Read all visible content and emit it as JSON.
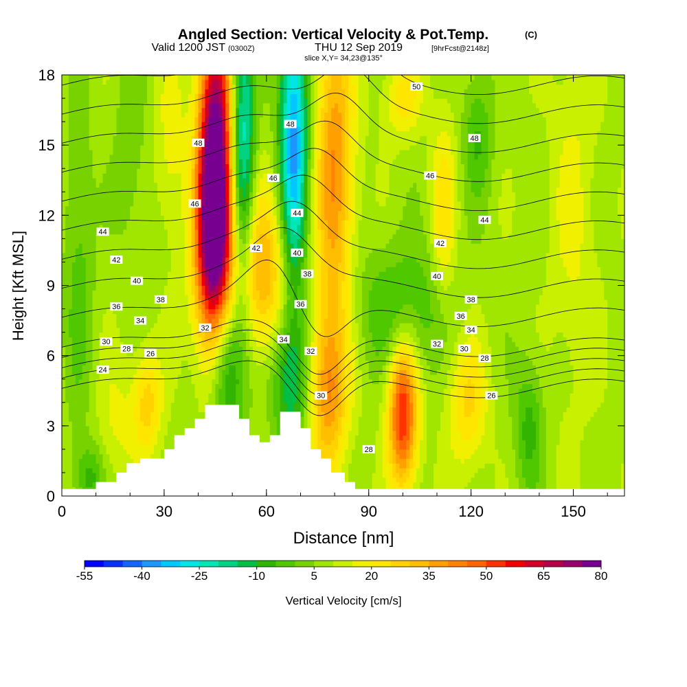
{
  "header": {
    "title": "Angled Section: Vertical Velocity & Pot.Temp.",
    "title_suffix": "(C)",
    "valid_prefix": "Valid 1200 JST",
    "valid_utc": "(0300Z)",
    "valid_date": "THU 12 Sep 2019",
    "forecast": "[9hrFcst@2148z]",
    "slice": "slice X,Y= 34,23@135°"
  },
  "chart_data": {
    "type": "heatmap",
    "xlabel": "Distance [nm]",
    "ylabel": "Height [Kft MSL]",
    "xlim": [
      0,
      165
    ],
    "ylim": [
      0,
      18
    ],
    "x_ticks": [
      0,
      30,
      60,
      90,
      120,
      150
    ],
    "y_ticks": [
      0,
      3,
      6,
      9,
      12,
      15,
      18
    ],
    "colorbar": {
      "label": "Vertical Velocity [cm/s]",
      "ticks": [
        -55,
        -40,
        -25,
        -10,
        5,
        20,
        35,
        50,
        65,
        80
      ],
      "levels": [
        -55,
        -50,
        -45,
        -40,
        -35,
        -30,
        -25,
        -20,
        -15,
        -10,
        -5,
        0,
        5,
        10,
        15,
        20,
        25,
        30,
        35,
        40,
        45,
        50,
        55,
        60,
        65,
        70,
        75,
        80
      ],
      "colors": [
        "#0000ff",
        "#0a32ff",
        "#1464ff",
        "#1e96ff",
        "#00c8ff",
        "#00e6e6",
        "#00e6b4",
        "#00d282",
        "#00be46",
        "#32b400",
        "#50c800",
        "#78d200",
        "#a0e600",
        "#c8f000",
        "#f0f000",
        "#ffe600",
        "#ffd200",
        "#ffbe00",
        "#ffa000",
        "#ff8200",
        "#ff6400",
        "#ff3200",
        "#f00000",
        "#d20028",
        "#b4004b",
        "#96006e",
        "#780091"
      ]
    },
    "terrain_profile": [
      [
        0,
        0.3
      ],
      [
        10,
        0.3
      ],
      [
        10,
        0.6
      ],
      [
        16,
        0.6
      ],
      [
        16,
        1.0
      ],
      [
        19,
        1.0
      ],
      [
        19,
        1.4
      ],
      [
        23,
        1.4
      ],
      [
        23,
        1.6
      ],
      [
        30,
        1.6
      ],
      [
        30,
        2.0
      ],
      [
        33,
        2.0
      ],
      [
        33,
        2.6
      ],
      [
        36,
        2.6
      ],
      [
        36,
        2.9
      ],
      [
        39,
        2.9
      ],
      [
        39,
        3.3
      ],
      [
        42,
        3.3
      ],
      [
        42,
        3.9
      ],
      [
        52,
        3.9
      ],
      [
        52,
        3.3
      ],
      [
        55,
        3.3
      ],
      [
        55,
        2.6
      ],
      [
        58,
        2.6
      ],
      [
        58,
        2.3
      ],
      [
        61,
        2.3
      ],
      [
        61,
        2.6
      ],
      [
        64,
        2.6
      ],
      [
        64,
        3.6
      ],
      [
        70,
        3.6
      ],
      [
        70,
        2.9
      ],
      [
        73,
        2.9
      ],
      [
        73,
        2.0
      ],
      [
        76,
        2.0
      ],
      [
        76,
        1.6
      ],
      [
        79,
        1.6
      ],
      [
        79,
        1.0
      ],
      [
        83,
        1.0
      ],
      [
        83,
        0.6
      ],
      [
        86,
        0.6
      ],
      [
        86,
        0.3
      ],
      [
        165,
        0.3
      ]
    ],
    "w_features": [
      {
        "x": 45,
        "y": 14,
        "sx": 3.5,
        "sy": 4.5,
        "amp": 80,
        "tilt": 0.0
      },
      {
        "x": 44,
        "y": 10,
        "sx": 4,
        "sy": 3,
        "amp": 30,
        "tilt": 0.0
      },
      {
        "x": 53,
        "y": 14.5,
        "sx": 2.5,
        "sy": 5,
        "amp": -35,
        "tilt": 0.0
      },
      {
        "x": 68,
        "y": 15,
        "sx": 3,
        "sy": 5,
        "amp": -45,
        "tilt": 0.0
      },
      {
        "x": 80,
        "y": 14,
        "sx": 4,
        "sy": 5,
        "amp": 32,
        "tilt": 0.0
      },
      {
        "x": 58,
        "y": 9.5,
        "sx": 7,
        "sy": 2.5,
        "amp": 28,
        "tilt": 0.0
      },
      {
        "x": 48,
        "y": 6,
        "sx": 3.5,
        "sy": 2.5,
        "amp": -30,
        "tilt": 0.0
      },
      {
        "x": 67,
        "y": 5,
        "sx": 4,
        "sy": 2,
        "amp": -22,
        "tilt": 0.0
      },
      {
        "x": 78,
        "y": 4.5,
        "sx": 4,
        "sy": 2.5,
        "amp": 30,
        "tilt": 0.0
      },
      {
        "x": 100,
        "y": 3.5,
        "sx": 3,
        "sy": 2.2,
        "amp": 48,
        "tilt": 0.0
      },
      {
        "x": 119,
        "y": 4,
        "sx": 4,
        "sy": 2,
        "amp": 18,
        "tilt": 0.0
      },
      {
        "x": 100,
        "y": 8,
        "sx": 10,
        "sy": 2,
        "amp": -14,
        "tilt": 0.0
      },
      {
        "x": 25,
        "y": 4,
        "sx": 3,
        "sy": 1.6,
        "amp": 20,
        "tilt": 0.0
      },
      {
        "x": 16,
        "y": 3,
        "sx": 4,
        "sy": 2,
        "amp": 8,
        "tilt": 0.0
      },
      {
        "x": 8,
        "y": 0.8,
        "sx": 3,
        "sy": 1,
        "amp": -15,
        "tilt": 0.0
      },
      {
        "x": 137,
        "y": 3,
        "sx": 3,
        "sy": 2,
        "amp": -15,
        "tilt": 0.0
      },
      {
        "x": 5,
        "y": 10,
        "sx": 3,
        "sy": 5,
        "amp": -10,
        "tilt": 0.0
      },
      {
        "x": 112,
        "y": 12,
        "sx": 2.5,
        "sy": 3,
        "amp": 15,
        "tilt": 0.0
      },
      {
        "x": 122,
        "y": 15.5,
        "sx": 3,
        "sy": 2,
        "amp": -13,
        "tilt": 0.0
      },
      {
        "x": 150,
        "y": 12,
        "sx": 5,
        "sy": 6,
        "amp": 8,
        "tilt": 0.0
      },
      {
        "x": 100,
        "y": 17,
        "sx": 4,
        "sy": 1.2,
        "amp": 15,
        "tilt": 0.0
      },
      {
        "x": 32,
        "y": 15,
        "sx": 3,
        "sy": 3,
        "amp": 10,
        "tilt": 0.0
      },
      {
        "x": 20,
        "y": 15,
        "sx": 3,
        "sy": 3,
        "amp": -8,
        "tilt": 0.0
      }
    ],
    "theta_levels": [
      24,
      26,
      28,
      30,
      32,
      34,
      36,
      38,
      40,
      42,
      44,
      46,
      48,
      50
    ],
    "contour_labels": [
      {
        "text": "50",
        "x": 104,
        "y": 17.5
      },
      {
        "text": "48",
        "x": 40,
        "y": 15.1
      },
      {
        "text": "48",
        "x": 67,
        "y": 15.9
      },
      {
        "text": "48",
        "x": 121,
        "y": 15.3
      },
      {
        "text": "46",
        "x": 62,
        "y": 13.6
      },
      {
        "text": "46",
        "x": 108,
        "y": 13.7
      },
      {
        "text": "46",
        "x": 39,
        "y": 12.5
      },
      {
        "text": "44",
        "x": 12,
        "y": 11.3
      },
      {
        "text": "44",
        "x": 69,
        "y": 12.1
      },
      {
        "text": "44",
        "x": 124,
        "y": 11.8
      },
      {
        "text": "42",
        "x": 16,
        "y": 10.1
      },
      {
        "text": "42",
        "x": 57,
        "y": 10.6
      },
      {
        "text": "42",
        "x": 111,
        "y": 10.8
      },
      {
        "text": "40",
        "x": 22,
        "y": 9.2
      },
      {
        "text": "40",
        "x": 69,
        "y": 10.4
      },
      {
        "text": "40",
        "x": 110,
        "y": 9.4
      },
      {
        "text": "38",
        "x": 29,
        "y": 8.4
      },
      {
        "text": "38",
        "x": 72,
        "y": 9.5
      },
      {
        "text": "38",
        "x": 120,
        "y": 8.4
      },
      {
        "text": "36",
        "x": 16,
        "y": 8.1
      },
      {
        "text": "36",
        "x": 70,
        "y": 8.2
      },
      {
        "text": "36",
        "x": 117,
        "y": 7.7
      },
      {
        "text": "34",
        "x": 23,
        "y": 7.5
      },
      {
        "text": "34",
        "x": 65,
        "y": 6.7
      },
      {
        "text": "34",
        "x": 120,
        "y": 7.1
      },
      {
        "text": "32",
        "x": 42,
        "y": 7.2
      },
      {
        "text": "32",
        "x": 73,
        "y": 6.2
      },
      {
        "text": "32",
        "x": 110,
        "y": 6.5
      },
      {
        "text": "30",
        "x": 13,
        "y": 6.6
      },
      {
        "text": "30",
        "x": 76,
        "y": 4.3
      },
      {
        "text": "30",
        "x": 118,
        "y": 6.3
      },
      {
        "text": "28",
        "x": 19,
        "y": 6.3
      },
      {
        "text": "28",
        "x": 90,
        "y": 2.0
      },
      {
        "text": "28",
        "x": 124,
        "y": 5.9
      },
      {
        "text": "26",
        "x": 26,
        "y": 6.1
      },
      {
        "text": "26",
        "x": 126,
        "y": 4.3
      },
      {
        "text": "24",
        "x": 12,
        "y": 5.4
      }
    ]
  }
}
